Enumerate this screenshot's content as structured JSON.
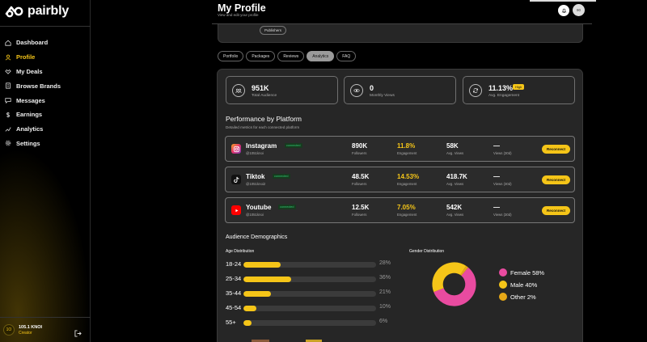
{
  "app": {
    "name": "pairbly"
  },
  "sidebar": {
    "items": [
      {
        "label": "Dashboard",
        "icon": "home-icon"
      },
      {
        "label": "Profile",
        "icon": "user-icon",
        "active": true
      },
      {
        "label": "My Deals",
        "icon": "deals-icon"
      },
      {
        "label": "Browse Brands",
        "icon": "building-icon"
      },
      {
        "label": "Messages",
        "icon": "message-icon"
      },
      {
        "label": "Earnings",
        "icon": "dollar-icon"
      },
      {
        "label": "Analytics",
        "icon": "chart-icon"
      },
      {
        "label": "Settings",
        "icon": "gear-icon"
      }
    ],
    "user": {
      "initials": "1O",
      "name": "105.1 KNOI",
      "role": "Creator"
    }
  },
  "header": {
    "title": "My Profile",
    "subtitle": "View and edit your profile",
    "avatar_initials": "90"
  },
  "profile_card": {
    "pill": "Publishers"
  },
  "tabs": [
    {
      "label": "Portfolio"
    },
    {
      "label": "Packages"
    },
    {
      "label": "Reviews"
    },
    {
      "label": "Analytics",
      "active": true
    },
    {
      "label": "FAQ"
    }
  ],
  "stats": [
    {
      "value": "951K",
      "label": "Total Audience",
      "icon": "audience-icon"
    },
    {
      "value": "0",
      "label": "Monthly Views",
      "icon": "eye-icon"
    },
    {
      "value": "11.13%",
      "label": "Avg. Engagement",
      "icon": "refresh-icon",
      "badge": "High"
    }
  ],
  "performance": {
    "title": "Performance by Platform",
    "subtitle": "Detailed metrics for each connected platform",
    "connected_label": "connected",
    "metric_labels": {
      "followers": "Followers",
      "engagement": "Engagement",
      "avg_views": "Avg. Views",
      "views_30d": "Views (30d)"
    },
    "reconnect_label": "Reconnect",
    "platforms": [
      {
        "name": "Instagram",
        "handle": "@1051knoi",
        "followers": "890K",
        "engagement": "11.8%",
        "avg_views": "58K",
        "views_30d": "—",
        "icon": "instagram-icon",
        "color": "#e1306c"
      },
      {
        "name": "Tiktok",
        "handle": "@1051knoi2",
        "followers": "48.5K",
        "engagement": "14.53%",
        "avg_views": "418.7K",
        "views_30d": "—",
        "icon": "tiktok-icon",
        "color": "#111111"
      },
      {
        "name": "Youtube",
        "handle": "@1051knoi",
        "followers": "12.5K",
        "engagement": "7.05%",
        "avg_views": "542K",
        "views_30d": "—",
        "icon": "youtube-icon",
        "color": "#ff0000"
      }
    ]
  },
  "demographics": {
    "title": "Audience Demographics",
    "age_title": "Age Distribution",
    "gender_title": "Gender Distribution",
    "age": [
      {
        "label": "18-24",
        "pct": "28%",
        "value": 28
      },
      {
        "label": "25-34",
        "pct": "36%",
        "value": 36
      },
      {
        "label": "35-44",
        "pct": "21%",
        "value": 21
      },
      {
        "label": "45-54",
        "pct": "10%",
        "value": 10
      },
      {
        "label": "55+",
        "pct": "6%",
        "value": 6
      }
    ],
    "gender": [
      {
        "label": "Female 58%",
        "value": 58,
        "color": "#e94ba0"
      },
      {
        "label": "Male 40%",
        "value": 40,
        "color": "#f5c518"
      },
      {
        "label": "Other 2%",
        "value": 2,
        "color": "#e6a817"
      }
    ]
  },
  "colors": {
    "accent": "#f5c518",
    "panel": "#262626",
    "connected": "#2ecc71"
  }
}
